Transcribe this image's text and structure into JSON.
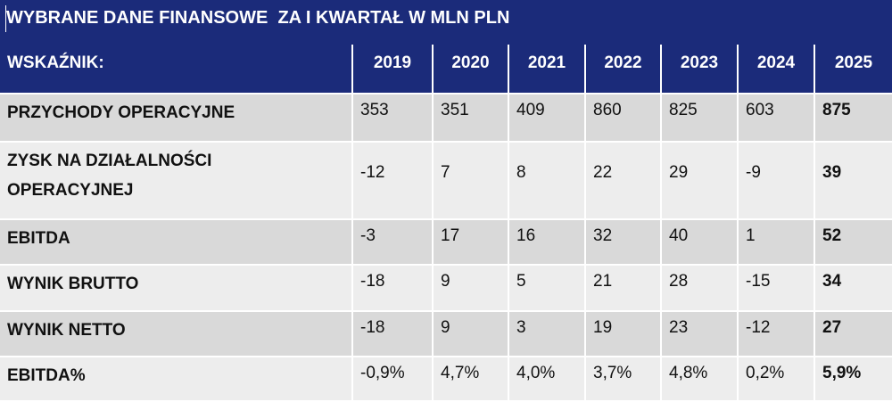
{
  "title": "WYBRANE DANE FINANSOWE  ZA I KWARTAŁ W MLN PLN",
  "header": {
    "label": "WSKAŹNIK:",
    "years": [
      "2019",
      "2020",
      "2021",
      "2022",
      "2023",
      "2024",
      "2025"
    ]
  },
  "rows": [
    {
      "label": "PRZYCHODY OPERACYJNE",
      "values": [
        "353",
        "351",
        "409",
        "860",
        "825",
        "603",
        "875"
      ]
    },
    {
      "label_line1": "ZYSK NA DZIAŁALNOŚCI",
      "label_line2": "OPERACYJNEJ",
      "values": [
        "-12",
        "7",
        "8",
        "22",
        "29",
        "-9",
        "39"
      ]
    },
    {
      "label": "EBITDA",
      "values": [
        "-3",
        "17",
        "16",
        "32",
        "40",
        "1",
        "52"
      ]
    },
    {
      "label": "WYNIK BRUTTO",
      "values": [
        "-18",
        "9",
        "5",
        "21",
        "28",
        "-15",
        "34"
      ]
    },
    {
      "label": "WYNIK NETTO",
      "values": [
        "-18",
        "9",
        "3",
        "19",
        "23",
        "-12",
        "27"
      ]
    },
    {
      "label": "EBITDA%",
      "values": [
        "-0,9%",
        "4,7%",
        "4,0%",
        "3,7%",
        "4,8%",
        "0,2%",
        "5,9%"
      ]
    }
  ],
  "colors": {
    "header_bg": "#1b2b7a",
    "row_dark": "#d9d9d9",
    "row_light": "#ededed"
  }
}
